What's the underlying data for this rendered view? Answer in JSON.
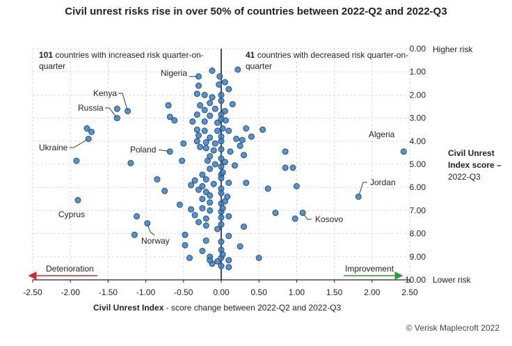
{
  "title": "Civil unrest risks rise in over 50% of countries between 2022-Q2 and 2022-Q3",
  "credit": "© Verisk Maplecroft 2022",
  "colors": {
    "point": "#3d7fbf",
    "deterioration": "#d62728",
    "improvement": "#2ca02c",
    "grid": "#d9d9d9"
  },
  "chart_data": {
    "type": "scatter",
    "title": "Civil unrest risks rise in over 50% of countries between 2022-Q2 and 2022-Q3",
    "xlabel_bold": "Civil Unrest Index",
    "xlabel_rest": " - score change between 2022-Q2 and 2022-Q3",
    "ylabel_lines": [
      "Civil Unrest",
      "Index score –",
      "2022-Q3"
    ],
    "xlim": [
      -2.5,
      2.5
    ],
    "ylim": [
      0,
      10
    ],
    "y_inverted": true,
    "grid": true,
    "x_ticks": [
      -2.5,
      -2.0,
      -1.5,
      -1.0,
      -0.5,
      0.0,
      0.5,
      1.0,
      1.5,
      2.0,
      2.5
    ],
    "x_tick_labels": [
      "-2.50",
      "-2.00",
      "-1.50",
      "-1.00",
      "-0.50",
      "0.00",
      "0.50",
      "1.00",
      "1.50",
      "2.00",
      "2.50"
    ],
    "y_ticks": [
      0,
      1,
      2,
      3,
      4,
      5,
      6,
      7,
      8,
      9,
      10
    ],
    "y_tick_labels": [
      "0.00",
      "1.00",
      "2.00",
      "3.00",
      "4.00",
      "5.00",
      "6.00",
      "7.00",
      "8.00",
      "9.00",
      "10.00"
    ],
    "y_end_labels": {
      "top": "Higher risk",
      "bottom": "Lower risk"
    },
    "arrow_labels": {
      "left": "Deterioration",
      "right": "Improvement"
    },
    "increased": {
      "count": "101",
      "text1": " countries with increased risk quarter-on-",
      "text2": "quarter"
    },
    "decreased": {
      "count": "41",
      "text1": " countries with decreased risk quarter-on-",
      "text2": "quarter"
    },
    "labeled_points": [
      {
        "name": "Nigeria",
        "x": -0.3,
        "y": 1.2
      },
      {
        "name": "Kenya",
        "x": -1.24,
        "y": 2.7
      },
      {
        "name": "Russia",
        "x": -1.38,
        "y": 3.0
      },
      {
        "name": "Ukraine",
        "x": -1.76,
        "y": 3.9
      },
      {
        "name": "Poland",
        "x": -0.68,
        "y": 4.45
      },
      {
        "name": "Algeria",
        "x": 2.42,
        "y": 4.45
      },
      {
        "name": "Jordan",
        "x": 1.82,
        "y": 6.4
      },
      {
        "name": "Cyprus",
        "x": -1.9,
        "y": 6.55
      },
      {
        "name": "Kosovo",
        "x": 1.08,
        "y": 7.1
      },
      {
        "name": "Norway",
        "x": -0.98,
        "y": 7.55
      }
    ],
    "points": [
      [
        -0.3,
        1.2
      ],
      [
        0.22,
        0.9
      ],
      [
        -0.12,
        0.95
      ],
      [
        -0.02,
        1.2
      ],
      [
        0.05,
        1.45
      ],
      [
        0.1,
        1.75
      ],
      [
        -0.3,
        1.6
      ],
      [
        -0.03,
        1.55
      ],
      [
        -0.32,
        1.95
      ],
      [
        -0.22,
        2.0
      ],
      [
        -0.12,
        2.1
      ],
      [
        0.0,
        2.0
      ],
      [
        -0.28,
        2.45
      ],
      [
        -0.15,
        2.35
      ],
      [
        0.0,
        2.25
      ],
      [
        0.15,
        2.4
      ],
      [
        -0.22,
        2.65
      ],
      [
        -0.08,
        2.6
      ],
      [
        0.05,
        2.7
      ],
      [
        -0.32,
        2.85
      ],
      [
        -0.15,
        2.9
      ],
      [
        0.0,
        2.85
      ],
      [
        -0.38,
        3.15
      ],
      [
        -0.22,
        3.15
      ],
      [
        -0.05,
        3.2
      ],
      [
        0.0,
        3.05
      ],
      [
        -0.68,
        2.95
      ],
      [
        -0.62,
        3.1
      ],
      [
        -0.7,
        2.45
      ],
      [
        -1.24,
        2.7
      ],
      [
        -1.38,
        2.6
      ],
      [
        -1.38,
        3.0
      ],
      [
        -0.32,
        3.5
      ],
      [
        -0.22,
        3.55
      ],
      [
        -0.05,
        3.55
      ],
      [
        0.02,
        3.45
      ],
      [
        0.1,
        3.55
      ],
      [
        0.33,
        3.45
      ],
      [
        -0.3,
        3.75
      ],
      [
        -0.15,
        3.85
      ],
      [
        0.0,
        3.8
      ],
      [
        0.2,
        3.9
      ],
      [
        -0.32,
        4.0
      ],
      [
        -0.2,
        4.05
      ],
      [
        -0.08,
        4.1
      ],
      [
        0.0,
        4.0
      ],
      [
        0.25,
        4.2
      ],
      [
        0.28,
        3.95
      ],
      [
        0.4,
        3.8
      ],
      [
        0.55,
        3.5
      ],
      [
        -0.5,
        4.1
      ],
      [
        -0.68,
        4.45
      ],
      [
        -0.28,
        4.25
      ],
      [
        -0.2,
        4.3
      ],
      [
        -0.1,
        4.4
      ],
      [
        0.0,
        4.35
      ],
      [
        0.12,
        4.45
      ],
      [
        -0.15,
        4.65
      ],
      [
        0.0,
        4.75
      ],
      [
        0.3,
        4.6
      ],
      [
        -1.2,
        4.95
      ],
      [
        -0.52,
        4.85
      ],
      [
        -1.76,
        3.9
      ],
      [
        -1.72,
        3.6
      ],
      [
        -1.78,
        3.45
      ],
      [
        -1.92,
        4.85
      ],
      [
        -0.15,
        5.2
      ],
      [
        0.0,
        5.1
      ],
      [
        0.18,
        5.05
      ],
      [
        -0.25,
        5.45
      ],
      [
        0.0,
        5.45
      ],
      [
        0.02,
        5.35
      ],
      [
        -0.35,
        5.7
      ],
      [
        -0.2,
        5.65
      ],
      [
        0.0,
        5.6
      ],
      [
        0.1,
        5.8
      ],
      [
        0.33,
        5.8
      ],
      [
        -0.4,
        5.9
      ],
      [
        -0.25,
        5.95
      ],
      [
        0.0,
        6.05
      ],
      [
        -0.85,
        5.65
      ],
      [
        -0.75,
        6.15
      ],
      [
        -0.3,
        6.1
      ],
      [
        -0.2,
        6.2
      ],
      [
        0.0,
        6.25
      ],
      [
        -0.15,
        6.35
      ],
      [
        0.08,
        6.4
      ],
      [
        -0.25,
        6.5
      ],
      [
        -0.15,
        6.65
      ],
      [
        0.0,
        6.7
      ],
      [
        -0.55,
        6.75
      ],
      [
        -0.4,
        6.95
      ],
      [
        -0.25,
        6.9
      ],
      [
        -0.15,
        7.0
      ],
      [
        0.0,
        7.05
      ],
      [
        0.02,
        6.9
      ],
      [
        -0.35,
        7.2
      ],
      [
        -0.2,
        7.35
      ],
      [
        0.0,
        7.3
      ],
      [
        0.1,
        7.25
      ],
      [
        -0.3,
        7.5
      ],
      [
        -0.2,
        7.65
      ],
      [
        0.0,
        7.6
      ],
      [
        0.3,
        7.7
      ],
      [
        -1.12,
        7.25
      ],
      [
        -1.15,
        8.05
      ],
      [
        -0.98,
        7.55
      ],
      [
        -0.48,
        8.05
      ],
      [
        -0.48,
        8.5
      ],
      [
        -0.2,
        8.3
      ],
      [
        0.0,
        8.35
      ],
      [
        0.1,
        8.1
      ],
      [
        -0.25,
        8.75
      ],
      [
        0.0,
        8.7
      ],
      [
        -0.42,
        9.05
      ],
      [
        -0.15,
        9.0
      ],
      [
        -0.12,
        9.3
      ],
      [
        -0.05,
        9.2
      ],
      [
        0.0,
        9.4
      ],
      [
        0.1,
        9.45
      ],
      [
        0.5,
        9.05
      ],
      [
        -0.15,
        9.15
      ],
      [
        0.0,
        9.05
      ],
      [
        0.1,
        9.15
      ],
      [
        0.25,
        8.55
      ],
      [
        0.62,
        6.05
      ],
      [
        0.72,
        7.1
      ],
      [
        0.85,
        4.45
      ],
      [
        0.85,
        5.15
      ],
      [
        0.95,
        5.15
      ],
      [
        1.0,
        5.95
      ],
      [
        0.98,
        7.35
      ],
      [
        1.08,
        7.1
      ],
      [
        1.82,
        6.4
      ],
      [
        2.42,
        4.45
      ],
      [
        -1.9,
        6.55
      ],
      [
        -0.08,
        5.0
      ],
      [
        0.05,
        4.9
      ],
      [
        -0.1,
        5.85
      ],
      [
        0.05,
        6.6
      ],
      [
        -0.05,
        7.8
      ],
      [
        0.02,
        8.9
      ],
      [
        -0.18,
        4.85
      ],
      [
        0.06,
        3.1
      ]
    ]
  }
}
